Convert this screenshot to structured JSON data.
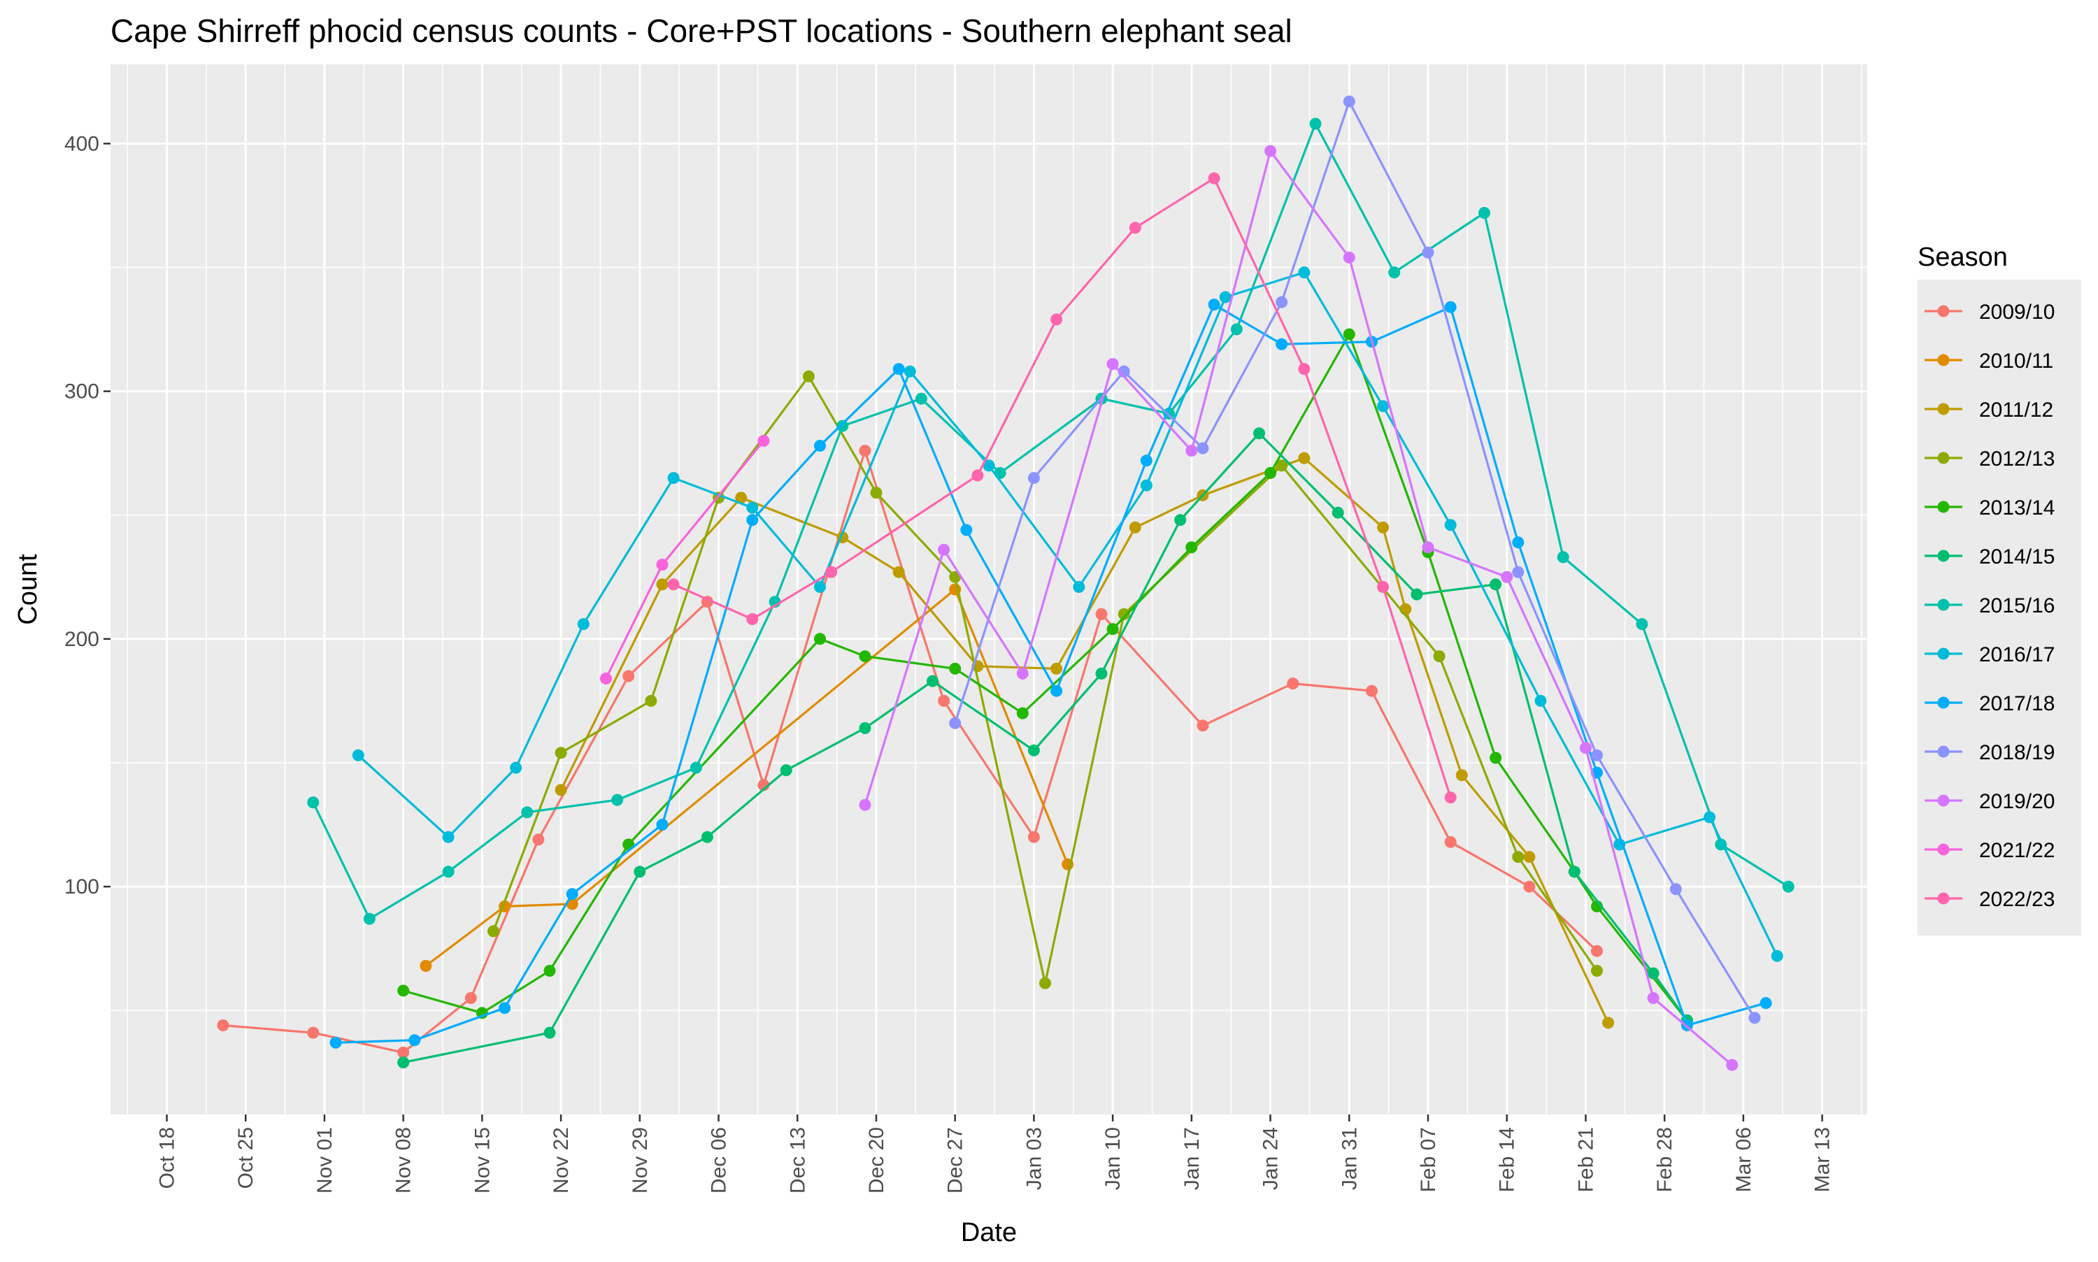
{
  "chart_data": {
    "type": "line",
    "title": "Cape Shirreff phocid census counts - Core+PST locations - Southern elephant seal",
    "xlabel": "Date",
    "ylabel": "Count",
    "x_axis": {
      "kind": "date",
      "range": [
        "Oct 13",
        "Mar 17"
      ],
      "ticks": [
        "Oct 18",
        "Oct 25",
        "Nov 01",
        "Nov 08",
        "Nov 15",
        "Nov 22",
        "Nov 29",
        "Dec 06",
        "Dec 13",
        "Dec 20",
        "Dec 27",
        "Jan 03",
        "Jan 10",
        "Jan 17",
        "Jan 24",
        "Jan 31",
        "Feb 07",
        "Feb 14",
        "Feb 21",
        "Feb 28",
        "Mar 06",
        "Mar 13"
      ]
    },
    "y_axis": {
      "range": [
        8,
        432
      ],
      "ticks": [
        100,
        200,
        300,
        400
      ]
    },
    "grid": true,
    "legend": {
      "title": "Season",
      "position": "right"
    },
    "series": [
      {
        "name": "2009/10",
        "color": "#F8766D",
        "points": [
          [
            "Oct 23",
            44
          ],
          [
            "Oct 31",
            41
          ],
          [
            "Nov 08",
            33
          ],
          [
            "Nov 14",
            55
          ],
          [
            "Nov 20",
            119
          ],
          [
            "Nov 28",
            185
          ],
          [
            "Dec 05",
            215
          ],
          [
            "Dec 10",
            141
          ],
          [
            "Dec 19",
            276
          ],
          [
            "Dec 26",
            175
          ],
          [
            "Jan 03",
            120
          ],
          [
            "Jan 09",
            210
          ],
          [
            "Jan 18",
            165
          ],
          [
            "Jan 26",
            182
          ],
          [
            "Feb 02",
            179
          ],
          [
            "Feb 09",
            118
          ],
          [
            "Feb 16",
            100
          ],
          [
            "Feb 22",
            74
          ]
        ]
      },
      {
        "name": "2010/11",
        "color": "#E18A00",
        "points": [
          [
            "Nov 10",
            68
          ],
          [
            "Nov 17",
            92
          ],
          [
            "Nov 23",
            93
          ],
          [
            "Dec 27",
            220
          ],
          [
            "Jan 06",
            109
          ]
        ]
      },
      {
        "name": "2011/12",
        "color": "#BE9C00",
        "points": [
          [
            "Nov 22",
            139
          ],
          [
            "Dec 01",
            222
          ],
          [
            "Dec 08",
            257
          ],
          [
            "Dec 17",
            241
          ],
          [
            "Dec 22",
            227
          ],
          [
            "Dec 29",
            189
          ],
          [
            "Jan 05",
            188
          ],
          [
            "Jan 12",
            245
          ],
          [
            "Jan 18",
            258
          ],
          [
            "Jan 27",
            273
          ],
          [
            "Feb 03",
            245
          ],
          [
            "Feb 05",
            212
          ],
          [
            "Feb 10",
            145
          ],
          [
            "Feb 16",
            112
          ],
          [
            "Feb 23",
            45
          ]
        ]
      },
      {
        "name": "2012/13",
        "color": "#8CAB00",
        "points": [
          [
            "Nov 16",
            82
          ],
          [
            "Nov 22",
            154
          ],
          [
            "Nov 30",
            175
          ],
          [
            "Dec 06",
            257
          ],
          [
            "Dec 14",
            306
          ],
          [
            "Dec 20",
            259
          ],
          [
            "Dec 27",
            225
          ],
          [
            "Jan 04",
            61
          ],
          [
            "Jan 11",
            210
          ],
          [
            "Jan 25",
            270
          ],
          [
            "Feb 08",
            193
          ],
          [
            "Feb 15",
            112
          ],
          [
            "Feb 22",
            66
          ]
        ]
      },
      {
        "name": "2013/14",
        "color": "#24B700",
        "points": [
          [
            "Nov 08",
            58
          ],
          [
            "Nov 15",
            49
          ],
          [
            "Nov 21",
            66
          ],
          [
            "Nov 28",
            117
          ],
          [
            "Dec 15",
            200
          ],
          [
            "Dec 19",
            193
          ],
          [
            "Dec 27",
            188
          ],
          [
            "Jan 02",
            170
          ],
          [
            "Jan 10",
            204
          ],
          [
            "Jan 17",
            237
          ],
          [
            "Jan 24",
            267
          ],
          [
            "Jan 31",
            323
          ],
          [
            "Feb 07",
            235
          ],
          [
            "Feb 13",
            152
          ],
          [
            "Feb 20",
            106
          ],
          [
            "Feb 22",
            92
          ],
          [
            "Mar 01",
            46
          ]
        ]
      },
      {
        "name": "2014/15",
        "color": "#00BE70",
        "points": [
          [
            "Nov 08",
            29
          ],
          [
            "Nov 21",
            41
          ],
          [
            "Nov 29",
            106
          ],
          [
            "Dec 05",
            120
          ],
          [
            "Dec 12",
            147
          ],
          [
            "Dec 19",
            164
          ],
          [
            "Dec 25",
            183
          ],
          [
            "Jan 03",
            155
          ],
          [
            "Jan 09",
            186
          ],
          [
            "Jan 16",
            248
          ],
          [
            "Jan 23",
            283
          ],
          [
            "Jan 30",
            251
          ],
          [
            "Feb 06",
            218
          ],
          [
            "Feb 13",
            222
          ],
          [
            "Feb 20",
            106
          ],
          [
            "Feb 27",
            65
          ],
          [
            "Mar 01",
            46
          ]
        ]
      },
      {
        "name": "2015/16",
        "color": "#00C1AB",
        "points": [
          [
            "Oct 31",
            134
          ],
          [
            "Nov 05",
            87
          ],
          [
            "Nov 12",
            106
          ],
          [
            "Nov 19",
            130
          ],
          [
            "Nov 27",
            135
          ],
          [
            "Dec 04",
            148
          ],
          [
            "Dec 11",
            215
          ],
          [
            "Dec 17",
            286
          ],
          [
            "Dec 24",
            297
          ],
          [
            "Dec 31",
            267
          ],
          [
            "Jan 09",
            297
          ],
          [
            "Jan 15",
            291
          ],
          [
            "Jan 21",
            325
          ],
          [
            "Jan 28",
            408
          ],
          [
            "Feb 04",
            348
          ],
          [
            "Feb 12",
            372
          ],
          [
            "Feb 19",
            233
          ],
          [
            "Feb 26",
            206
          ],
          [
            "Mar 04",
            117
          ],
          [
            "Mar 10",
            100
          ]
        ]
      },
      {
        "name": "2016/17",
        "color": "#00BBDA",
        "points": [
          [
            "Nov 04",
            153
          ],
          [
            "Nov 12",
            120
          ],
          [
            "Nov 18",
            148
          ],
          [
            "Nov 24",
            206
          ],
          [
            "Dec 02",
            265
          ],
          [
            "Dec 09",
            253
          ],
          [
            "Dec 15",
            221
          ],
          [
            "Dec 23",
            308
          ],
          [
            "Dec 30",
            270
          ],
          [
            "Jan 07",
            221
          ],
          [
            "Jan 13",
            262
          ],
          [
            "Jan 20",
            338
          ],
          [
            "Jan 27",
            348
          ],
          [
            "Feb 03",
            294
          ],
          [
            "Feb 09",
            246
          ],
          [
            "Feb 17",
            175
          ],
          [
            "Feb 24",
            117
          ],
          [
            "Mar 03",
            128
          ],
          [
            "Mar 09",
            72
          ]
        ]
      },
      {
        "name": "2017/18",
        "color": "#00ACFC",
        "points": [
          [
            "Nov 02",
            37
          ],
          [
            "Nov 09",
            38
          ],
          [
            "Nov 17",
            51
          ],
          [
            "Nov 23",
            97
          ],
          [
            "Dec 01",
            125
          ],
          [
            "Dec 09",
            248
          ],
          [
            "Dec 15",
            278
          ],
          [
            "Dec 22",
            309
          ],
          [
            "Dec 28",
            244
          ],
          [
            "Jan 05",
            179
          ],
          [
            "Jan 13",
            272
          ],
          [
            "Jan 19",
            335
          ],
          [
            "Jan 25",
            319
          ],
          [
            "Feb 02",
            320
          ],
          [
            "Feb 09",
            334
          ],
          [
            "Feb 15",
            239
          ],
          [
            "Feb 22",
            146
          ],
          [
            "Mar 01",
            44
          ],
          [
            "Mar 08",
            53
          ]
        ]
      },
      {
        "name": "2018/19",
        "color": "#8B93FF",
        "points": [
          [
            "Dec 27",
            166
          ],
          [
            "Jan 03",
            265
          ],
          [
            "Jan 11",
            308
          ],
          [
            "Jan 18",
            277
          ],
          [
            "Jan 25",
            336
          ],
          [
            "Jan 31",
            417
          ],
          [
            "Feb 07",
            356
          ],
          [
            "Feb 15",
            227
          ],
          [
            "Feb 22",
            153
          ],
          [
            "Feb 29",
            99
          ],
          [
            "Mar 07",
            47
          ]
        ]
      },
      {
        "name": "2019/20",
        "color": "#D575FE",
        "points": [
          [
            "Dec 19",
            133
          ],
          [
            "Dec 26",
            236
          ],
          [
            "Jan 02",
            186
          ],
          [
            "Jan 10",
            311
          ],
          [
            "Jan 17",
            276
          ],
          [
            "Jan 24",
            397
          ],
          [
            "Jan 31",
            354
          ],
          [
            "Feb 07",
            237
          ],
          [
            "Feb 14",
            225
          ],
          [
            "Feb 21",
            156
          ],
          [
            "Feb 27",
            55
          ],
          [
            "Mar 05",
            28
          ]
        ]
      },
      {
        "name": "2021/22",
        "color": "#F962DD",
        "points": [
          [
            "Nov 26",
            184
          ],
          [
            "Dec 01",
            230
          ],
          [
            "Dec 10",
            280
          ]
        ]
      },
      {
        "name": "2022/23",
        "color": "#FF65AC",
        "points": [
          [
            "Dec 02",
            222
          ],
          [
            "Dec 09",
            208
          ],
          [
            "Dec 16",
            227
          ],
          [
            "Dec 29",
            266
          ],
          [
            "Jan 05",
            329
          ],
          [
            "Jan 12",
            366
          ],
          [
            "Jan 19",
            386
          ],
          [
            "Jan 27",
            309
          ],
          [
            "Feb 03",
            221
          ],
          [
            "Feb 09",
            136
          ]
        ]
      }
    ]
  }
}
